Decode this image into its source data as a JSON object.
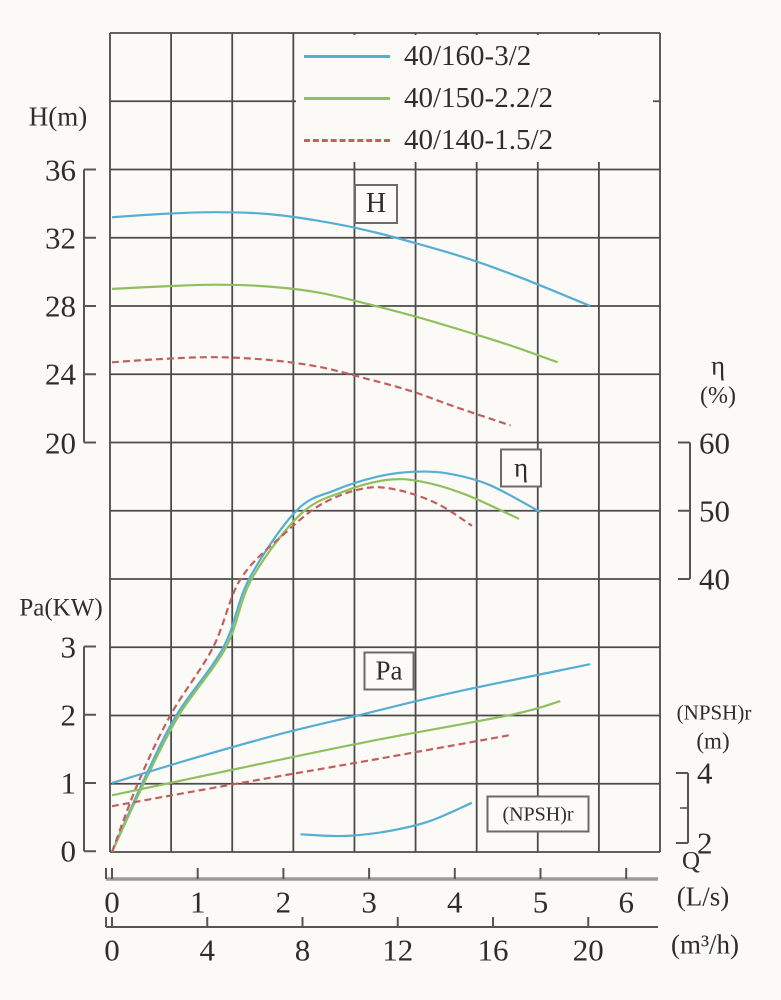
{
  "chart_data": {
    "type": "line",
    "description": "Centrifugal pump performance curves: head H, efficiency, shaft power Pa and (NPSH)r versus flow rate Q",
    "x_axis": {
      "primary": {
        "label": "(L/s)",
        "ticks": [
          0,
          1,
          2,
          3,
          4,
          5,
          6
        ]
      },
      "secondary": {
        "label": "(m³/h)",
        "ticks": [
          0,
          4,
          8,
          12,
          16,
          20
        ]
      },
      "q_label": "Q"
    },
    "y_axes": {
      "head": {
        "label": "H(m)",
        "ticks": [
          36,
          32,
          28,
          24,
          20
        ]
      },
      "power": {
        "label": "Pa(KW)",
        "ticks": [
          3,
          2,
          1,
          0
        ]
      },
      "efficiency": {
        "label": "η",
        "unit": "(%)",
        "ticks": [
          60,
          50,
          40
        ]
      },
      "npshr": {
        "label": "(NPSH)r",
        "unit": "(m)",
        "ticks": [
          4,
          2
        ]
      }
    },
    "section_labels": {
      "head": "H",
      "efficiency": "η",
      "power": "Pa",
      "npshr": "(NPSH)r"
    },
    "legend": [
      {
        "label": "40/160-3/2",
        "color": "#56aed2",
        "dashed": false
      },
      {
        "label": "40/150-2.2/2",
        "color": "#90c05e",
        "dashed": false
      },
      {
        "label": "40/140-1.5/2",
        "color": "#c2605e",
        "dashed": true
      }
    ],
    "series": {
      "head": [
        {
          "model": "40/160-3/2",
          "points": [
            [
              0,
              33.2
            ],
            [
              0.6,
              33.4
            ],
            [
              1.2,
              33.5
            ],
            [
              1.8,
              33.4
            ],
            [
              2.4,
              33.0
            ],
            [
              3.0,
              32.4
            ],
            [
              3.6,
              31.6
            ],
            [
              4.2,
              30.7
            ],
            [
              4.8,
              29.6
            ],
            [
              5.58,
              28.0
            ]
          ]
        },
        {
          "model": "40/150-2.2/2",
          "points": [
            [
              0,
              29.0
            ],
            [
              0.6,
              29.15
            ],
            [
              1.2,
              29.25
            ],
            [
              1.8,
              29.15
            ],
            [
              2.4,
              28.8
            ],
            [
              3.0,
              28.1
            ],
            [
              3.6,
              27.3
            ],
            [
              4.2,
              26.4
            ],
            [
              4.7,
              25.6
            ],
            [
              5.2,
              24.7
            ]
          ]
        },
        {
          "model": "40/140-1.5/2",
          "points": [
            [
              0,
              24.7
            ],
            [
              0.6,
              24.9
            ],
            [
              1.2,
              25.0
            ],
            [
              1.8,
              24.85
            ],
            [
              2.4,
              24.45
            ],
            [
              3.0,
              23.7
            ],
            [
              3.5,
              23.0
            ],
            [
              4.0,
              22.1
            ],
            [
              4.65,
              21.0
            ]
          ]
        }
      ],
      "efficiency": [
        {
          "model": "40/160-3/2",
          "points": [
            [
              0,
              0
            ],
            [
              0.35,
              10
            ],
            [
              0.75,
              20
            ],
            [
              1.3,
              30
            ],
            [
              1.6,
              40
            ],
            [
              2.15,
              50
            ],
            [
              2.6,
              53
            ],
            [
              3.1,
              55
            ],
            [
              3.5,
              55.7
            ],
            [
              3.9,
              55.5
            ],
            [
              4.4,
              53.8
            ],
            [
              5.0,
              49.8
            ]
          ]
        },
        {
          "model": "40/150-2.2/2",
          "points": [
            [
              0,
              0
            ],
            [
              0.37,
              10
            ],
            [
              0.78,
              20
            ],
            [
              1.33,
              30
            ],
            [
              1.63,
              40
            ],
            [
              2.2,
              49.5
            ],
            [
              2.7,
              52.8
            ],
            [
              3.2,
              54.5
            ],
            [
              3.6,
              54.3
            ],
            [
              4.1,
              52.5
            ],
            [
              4.75,
              48.8
            ]
          ]
        },
        {
          "model": "40/140-1.5/2",
          "points": [
            [
              0,
              0
            ],
            [
              0.3,
              10
            ],
            [
              0.68,
              20
            ],
            [
              1.18,
              30
            ],
            [
              1.5,
              40
            ],
            [
              2.0,
              46.5
            ],
            [
              2.45,
              51
            ],
            [
              2.95,
              53.3
            ],
            [
              3.35,
              53.0
            ],
            [
              3.8,
              51.0
            ],
            [
              4.2,
              47.8
            ]
          ]
        }
      ],
      "power": [
        {
          "model": "40/160-3/2",
          "points": [
            [
              0,
              1.0
            ],
            [
              1.0,
              1.38
            ],
            [
              2.0,
              1.73
            ],
            [
              2.9,
              2.0
            ],
            [
              4.0,
              2.33
            ],
            [
              5.58,
              2.74
            ]
          ]
        },
        {
          "model": "40/150-2.2/2",
          "points": [
            [
              0,
              0.82
            ],
            [
              1.5,
              1.22
            ],
            [
              3.0,
              1.61
            ],
            [
              4.66,
              2.0
            ],
            [
              5.23,
              2.2
            ]
          ]
        },
        {
          "model": "40/140-1.5/2",
          "points": [
            [
              0,
              0.66
            ],
            [
              1.5,
              1.0
            ],
            [
              3.0,
              1.33
            ],
            [
              4.64,
              1.7
            ]
          ]
        }
      ],
      "npshr": {
        "model": "40/160-3/2",
        "points": [
          [
            2.2,
            2.25
          ],
          [
            2.7,
            2.2
          ],
          [
            3.2,
            2.33
          ],
          [
            3.7,
            2.62
          ],
          [
            4.2,
            3.15
          ]
        ]
      }
    },
    "axis_ranges": {
      "head": {
        "min": 20,
        "max": 36,
        "per_grid_row": 4
      },
      "efficiency": {
        "min": 0,
        "max": 60
      },
      "power": {
        "min": 0,
        "max": 3
      },
      "npshr": {
        "min": 2,
        "max": 4
      },
      "flow_Ls": {
        "min": 0,
        "max": 6
      }
    },
    "grid": {
      "columns": 9,
      "rows": 12,
      "color": "#4b4b4b"
    }
  },
  "colors": {
    "background": "#fbfaf7",
    "grid": "#4b4b4b",
    "axis": "#555555",
    "axis_primary_line": "#9a9a9a",
    "text": "#2d2d2d"
  }
}
